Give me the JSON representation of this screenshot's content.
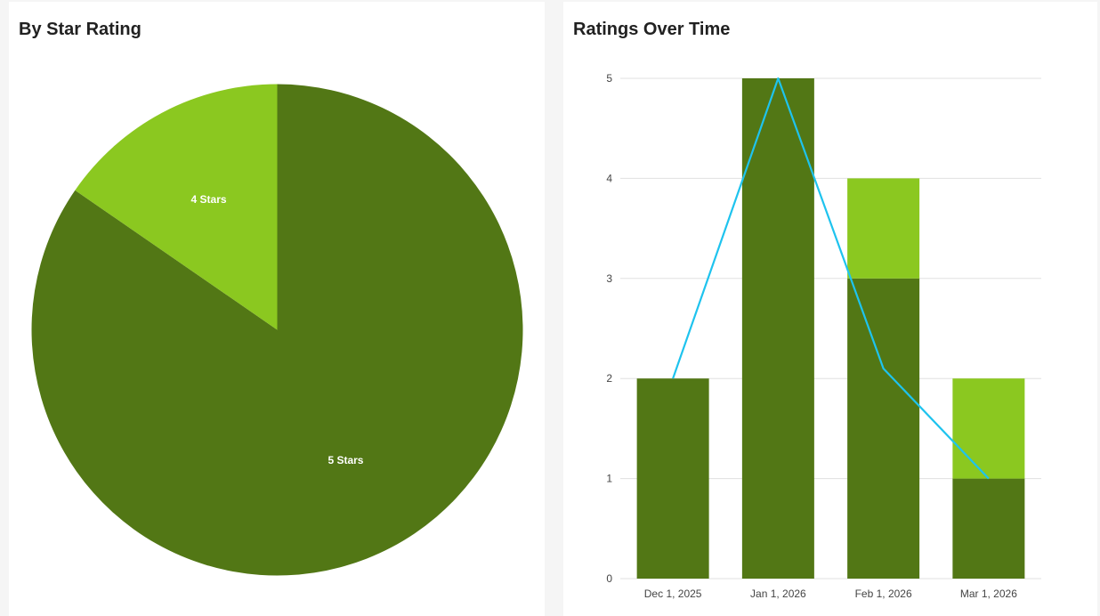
{
  "colors": {
    "five_stars": "#527715",
    "four_stars": "#8bc820",
    "trend_line": "#1ec3ee",
    "grid": "#e0e0e0",
    "tick_text": "#444444",
    "slice_label": "#ffffff"
  },
  "chart_data": [
    {
      "type": "pie",
      "title": "By Star Rating",
      "slices": [
        {
          "label": "5 Stars",
          "value": 11
        },
        {
          "label": "4 Stars",
          "value": 2
        }
      ]
    },
    {
      "type": "bar",
      "stacked": true,
      "title": "Ratings Over Time",
      "categories": [
        "Dec 1, 2025",
        "Jan 1, 2026",
        "Feb 1, 2026",
        "Mar 1, 2026"
      ],
      "series": [
        {
          "key": "five",
          "values": [
            2,
            5,
            3,
            1
          ]
        },
        {
          "key": "four",
          "values": [
            0,
            0,
            1,
            1
          ]
        }
      ],
      "line": {
        "values": [
          2,
          5,
          2.1,
          1
        ]
      },
      "ylim": [
        0,
        5
      ],
      "yticks": [
        "0",
        "1",
        "2",
        "3",
        "4",
        "5"
      ],
      "grid": true
    }
  ]
}
